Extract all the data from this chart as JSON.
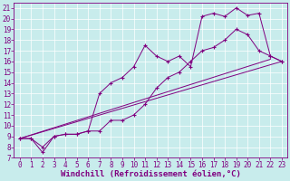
{
  "xlabel": "Windchill (Refroidissement éolien,°C)",
  "bg_color": "#c8ecec",
  "line_color": "#800080",
  "grid_color": "#ffffff",
  "xlim": [
    -0.5,
    23.5
  ],
  "ylim": [
    7,
    21.5
  ],
  "xticks": [
    0,
    1,
    2,
    3,
    4,
    5,
    6,
    7,
    8,
    9,
    10,
    11,
    12,
    13,
    14,
    15,
    16,
    17,
    18,
    19,
    20,
    21,
    22,
    23
  ],
  "yticks": [
    7,
    8,
    9,
    10,
    11,
    12,
    13,
    14,
    15,
    16,
    17,
    18,
    19,
    20,
    21
  ],
  "line1_x": [
    0,
    1,
    2,
    3,
    4,
    5,
    6,
    7,
    8,
    9,
    10,
    11,
    12,
    13,
    14,
    15,
    16,
    17,
    18,
    19,
    20,
    21,
    22,
    23
  ],
  "line1_y": [
    8.8,
    8.8,
    7.5,
    9.0,
    9.2,
    9.2,
    9.5,
    9.5,
    10.5,
    10.5,
    11.0,
    12.0,
    13.5,
    14.5,
    15.0,
    16.0,
    17.0,
    17.3,
    18.0,
    19.0,
    18.5,
    17.0,
    16.5,
    16.0
  ],
  "line2_x": [
    0,
    1,
    2,
    3,
    4,
    5,
    6,
    7,
    8,
    9,
    10,
    11,
    12,
    13,
    14,
    15,
    16,
    17,
    18,
    19,
    20,
    21,
    22,
    23
  ],
  "line2_y": [
    8.8,
    8.8,
    8.0,
    9.0,
    9.2,
    9.2,
    9.5,
    13.0,
    14.0,
    14.5,
    15.5,
    17.5,
    16.5,
    16.0,
    16.5,
    15.5,
    20.2,
    20.5,
    20.2,
    21.0,
    20.3,
    20.5,
    16.5,
    16.0
  ],
  "line3_x": [
    0,
    22
  ],
  "line3_y": [
    8.8,
    16.2
  ],
  "line4_x": [
    0,
    23
  ],
  "line4_y": [
    8.8,
    16.0
  ],
  "figsize": [
    3.2,
    2.0
  ],
  "dpi": 100,
  "tick_fontsize": 5.5,
  "xlabel_fontsize": 6.5,
  "label_color": "#800080"
}
